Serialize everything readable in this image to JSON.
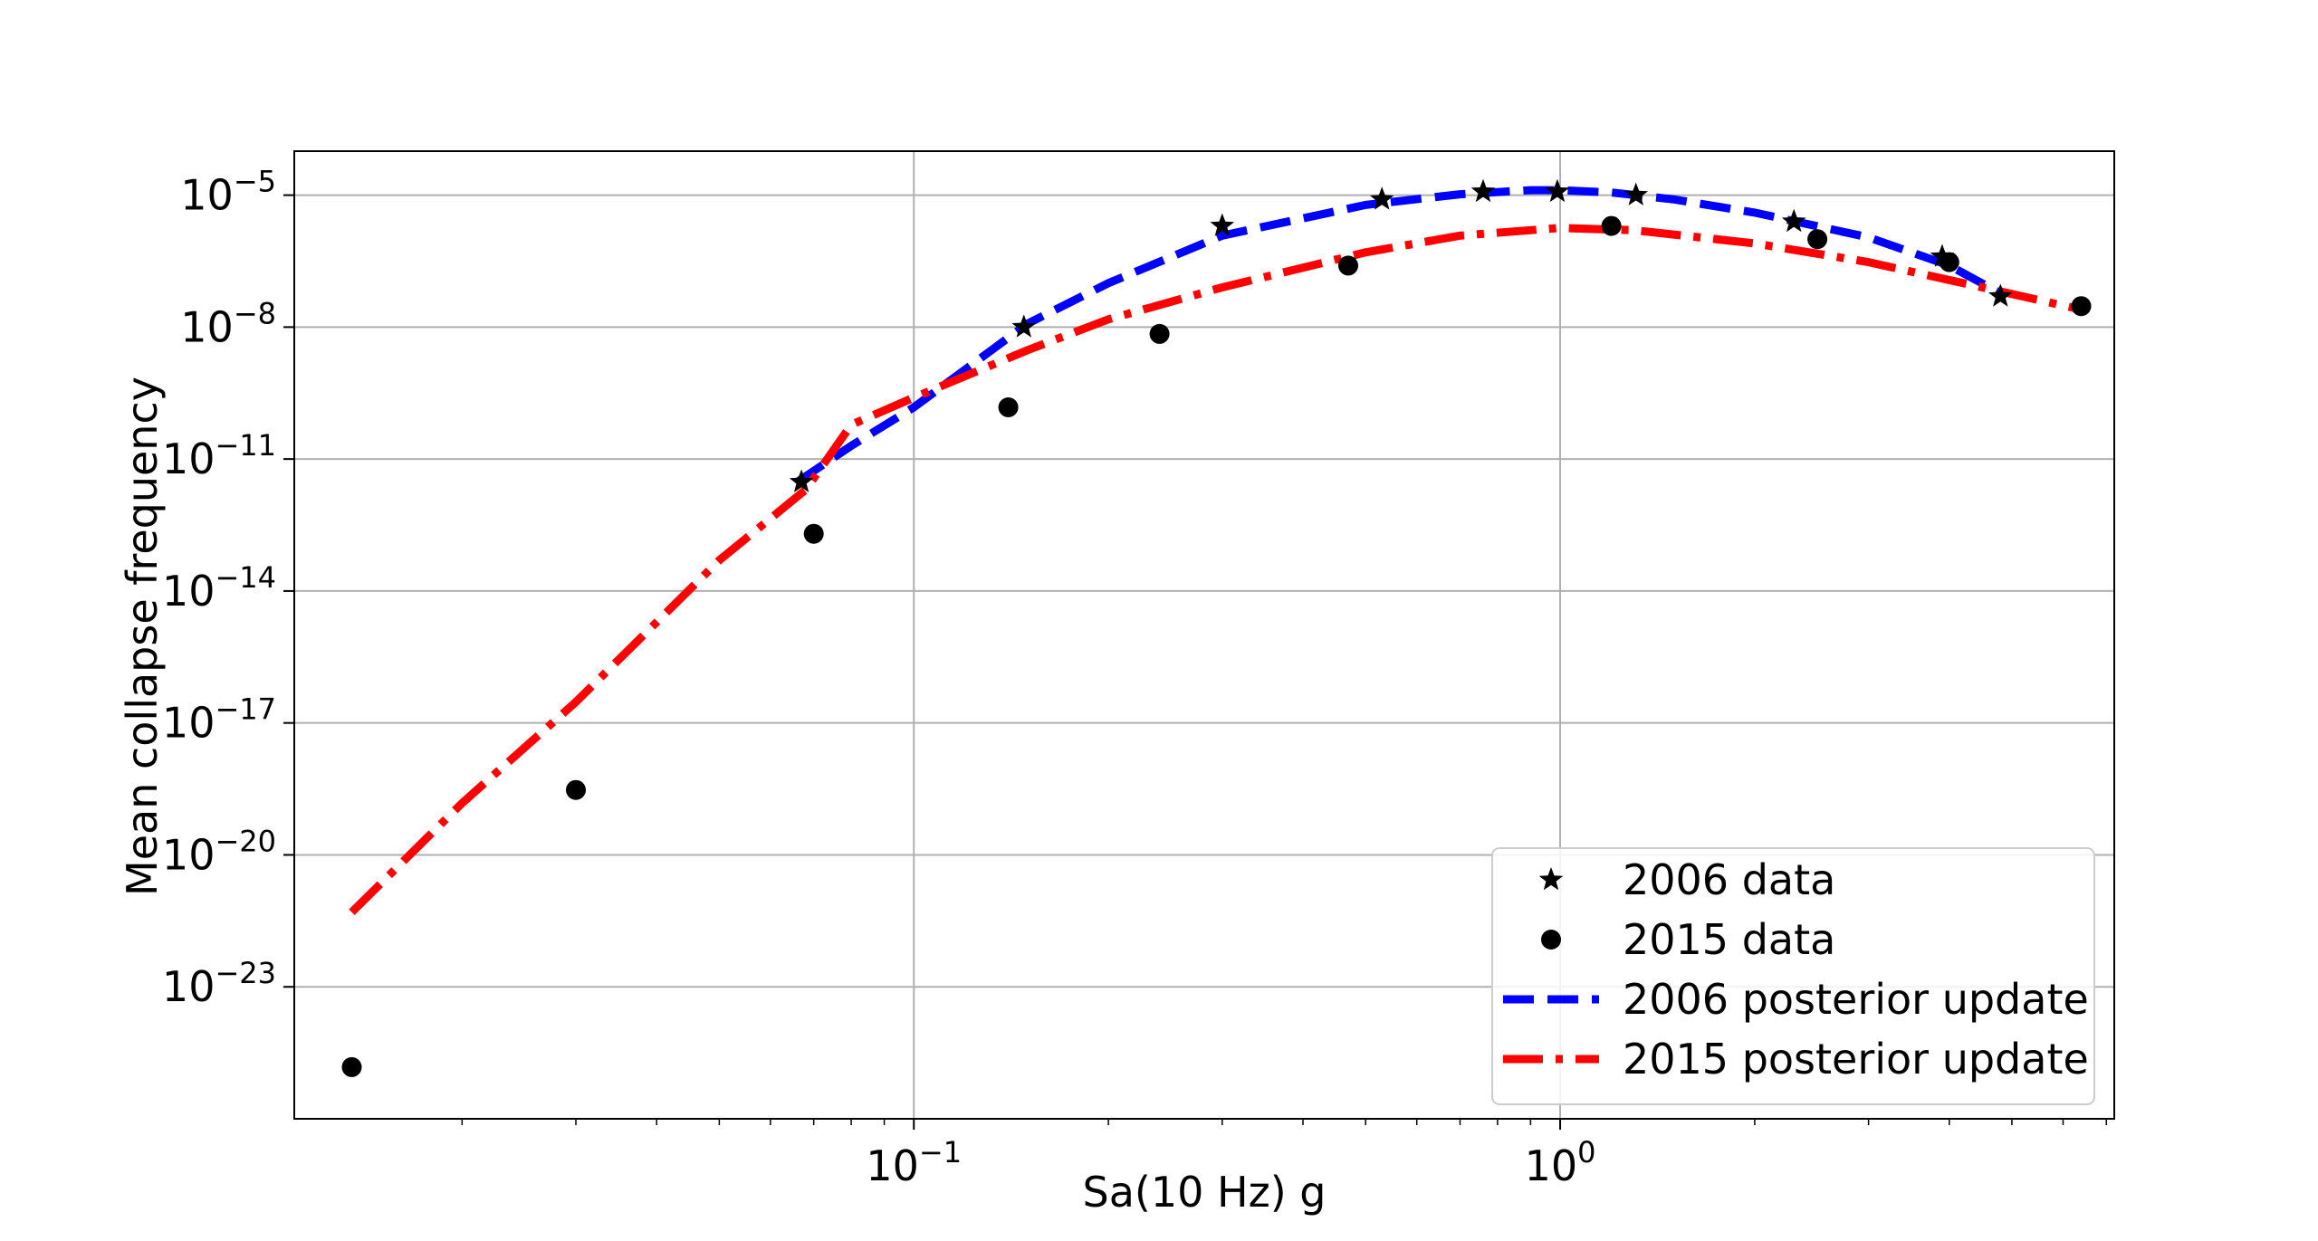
{
  "chart_data": {
    "type": "line",
    "title": "",
    "xlabel": "Sa(10 Hz) g",
    "ylabel": "Mean collapse frequency",
    "xscale": "log",
    "yscale": "log",
    "xlim": [
      0.011,
      7.2
    ],
    "ylim": [
      1e-26,
      0.0001
    ],
    "grid": true,
    "legend_position": "bottom-right",
    "x_tick_labels": [
      {
        "value": 0.1,
        "base": "10",
        "exp": "−1"
      },
      {
        "value": 1,
        "base": "10",
        "exp": "0"
      }
    ],
    "y_tick_labels": [
      {
        "value": 1e-05,
        "base": "10",
        "exp": "−5"
      },
      {
        "value": 1e-08,
        "base": "10",
        "exp": "−8"
      },
      {
        "value": 1e-11,
        "base": "10",
        "exp": "−11"
      },
      {
        "value": 1e-14,
        "base": "10",
        "exp": "−14"
      },
      {
        "value": 1e-17,
        "base": "10",
        "exp": "−17"
      },
      {
        "value": 1e-20,
        "base": "10",
        "exp": "−20"
      },
      {
        "value": 1e-23,
        "base": "10",
        "exp": "−23"
      }
    ],
    "series": [
      {
        "name": "2006 data",
        "style": "star-markers",
        "color": "#000000",
        "x": [
          0.067,
          0.148,
          0.3,
          0.53,
          0.76,
          0.99,
          1.31,
          2.3,
          3.9,
          4.8
        ],
        "y": [
          3e-12,
          1e-08,
          2e-06,
          8e-06,
          1.2e-05,
          1.2e-05,
          1e-05,
          2.5e-06,
          4e-07,
          5e-08
        ]
      },
      {
        "name": "2015 data",
        "style": "circle-markers",
        "color": "#000000",
        "x": [
          0.0135,
          0.03,
          0.07,
          0.14,
          0.24,
          0.47,
          1.2,
          2.5,
          4.0,
          6.4
        ],
        "y": [
          1.5e-25,
          3e-19,
          2e-13,
          1.5e-10,
          7e-09,
          2.5e-07,
          2e-06,
          1e-06,
          3e-07,
          3e-08
        ]
      },
      {
        "name": "2006 posterior update",
        "style": "dashed-line",
        "color": "#0000ff",
        "x": [
          0.066,
          0.08,
          0.1,
          0.15,
          0.2,
          0.3,
          0.5,
          0.7,
          0.9,
          1.0,
          1.2,
          1.5,
          2.0,
          3.0,
          4.0,
          4.9
        ],
        "y": [
          3e-12,
          2e-11,
          1.5e-10,
          1.2e-08,
          1e-07,
          1.2e-06,
          6e-06,
          1.05e-05,
          1.3e-05,
          1.3e-05,
          1.15e-05,
          8e-06,
          4e-06,
          1.1e-06,
          2.5e-07,
          5e-08
        ]
      },
      {
        "name": "2015 posterior update",
        "style": "dash-dot-line",
        "color": "#ff0000",
        "x": [
          0.0135,
          0.02,
          0.03,
          0.05,
          0.068,
          0.08,
          0.1,
          0.15,
          0.2,
          0.3,
          0.5,
          0.7,
          1.0,
          1.3,
          2.0,
          3.0,
          4.5,
          6.4
        ],
        "y": [
          5e-22,
          1.5e-19,
          3e-17,
          5e-14,
          2e-12,
          6e-11,
          2.5e-10,
          3e-09,
          1.5e-08,
          8e-08,
          5e-07,
          1.2e-06,
          1.8e-06,
          1.6e-06,
          8e-07,
          3e-07,
          8e-08,
          2.5e-08
        ]
      }
    ]
  }
}
